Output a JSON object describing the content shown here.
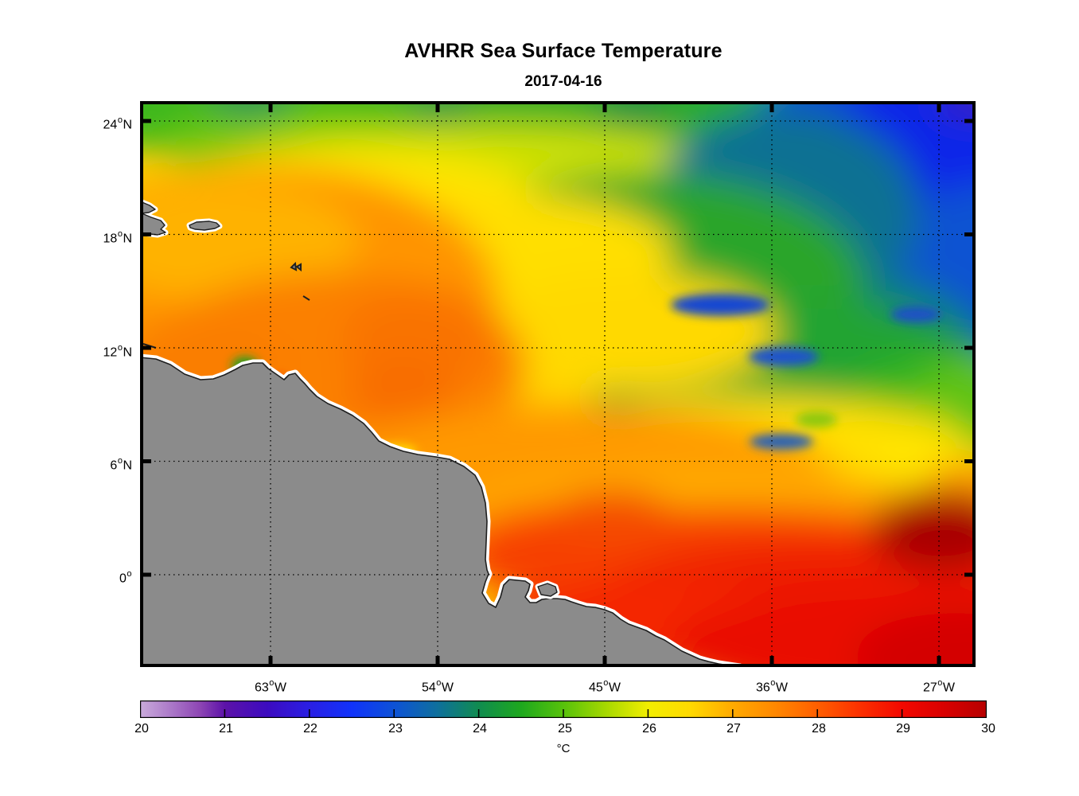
{
  "title": "AVHRR Sea Surface Temperature",
  "subtitle": "2017-04-16",
  "axes": {
    "x_ticks": [
      {
        "value": "63",
        "degree": "o",
        "suffix": "W"
      },
      {
        "value": "54",
        "degree": "o",
        "suffix": "W"
      },
      {
        "value": "45",
        "degree": "o",
        "suffix": "W"
      },
      {
        "value": "36",
        "degree": "o",
        "suffix": "W"
      },
      {
        "value": "27",
        "degree": "o",
        "suffix": "W"
      }
    ],
    "y_ticks": [
      {
        "value": "24",
        "degree": "o",
        "suffix": "N"
      },
      {
        "value": "18",
        "degree": "o",
        "suffix": "N"
      },
      {
        "value": "12",
        "degree": "o",
        "suffix": "N"
      },
      {
        "value": "6",
        "degree": "o",
        "suffix": "N"
      },
      {
        "value": "0",
        "degree": "o",
        "suffix": ""
      }
    ]
  },
  "colorbar": {
    "unit": "°C",
    "min": 20,
    "max": 30,
    "tick_labels": [
      "20",
      "21",
      "22",
      "23",
      "24",
      "25",
      "26",
      "27",
      "28",
      "29",
      "30"
    ],
    "stops": [
      {
        "t": 20.0,
        "color": "#c9aadb"
      },
      {
        "t": 20.4,
        "color": "#a873c6"
      },
      {
        "t": 20.7,
        "color": "#8e46b4"
      },
      {
        "t": 21.0,
        "color": "#5c12a8"
      },
      {
        "t": 21.5,
        "color": "#3c0bc0"
      },
      {
        "t": 22.0,
        "color": "#2a1fe4"
      },
      {
        "t": 22.5,
        "color": "#1133fa"
      },
      {
        "t": 23.0,
        "color": "#0d52d6"
      },
      {
        "t": 23.5,
        "color": "#0e6f9e"
      },
      {
        "t": 24.0,
        "color": "#108c50"
      },
      {
        "t": 24.5,
        "color": "#1ea81e"
      },
      {
        "t": 25.0,
        "color": "#57c20b"
      },
      {
        "t": 25.5,
        "color": "#a6d800"
      },
      {
        "t": 26.0,
        "color": "#f2ee00"
      },
      {
        "t": 26.5,
        "color": "#ffd900"
      },
      {
        "t": 27.0,
        "color": "#ffaa00"
      },
      {
        "t": 27.5,
        "color": "#ff8800"
      },
      {
        "t": 28.0,
        "color": "#ff5f00"
      },
      {
        "t": 28.5,
        "color": "#fb3100"
      },
      {
        "t": 29.0,
        "color": "#f30800"
      },
      {
        "t": 29.5,
        "color": "#d90000"
      },
      {
        "t": 30.0,
        "color": "#b70000"
      }
    ]
  },
  "map": {
    "land_color": "#8b8b8b",
    "coast_halo": "#ffffff",
    "coast_line": "#1f1f1f",
    "frame_color": "#000000"
  },
  "chart_data": {
    "type": "heatmap",
    "title": "AVHRR Sea Surface Temperature",
    "date": "2017-04-16",
    "variable": "Sea surface temperature",
    "sensor": "AVHRR",
    "units": "°C",
    "colorbar_range": [
      20,
      30
    ],
    "colorbar_ticks": [
      20,
      21,
      22,
      23,
      24,
      25,
      26,
      27,
      28,
      29,
      30
    ],
    "lon_ticks_deg_w": [
      63,
      54,
      45,
      36,
      27
    ],
    "lat_ticks_deg_n": [
      24,
      18,
      12,
      6,
      0
    ],
    "lon_extent_deg_w": [
      70,
      25
    ],
    "lat_extent_deg_n": [
      -4.9,
      25.1
    ],
    "grid": "dotted graticule, 9 deg lon x 6 deg lat, drawn over land and sea",
    "land": "South America (Venezuela/Guianas/Brazil) lower left, Hispaniola sliver and Puerto Rico upper left; gray fill with white no-data coastal buffer",
    "field_sample": {
      "note": "approximate SST in degC read from the color field; null = land / no data",
      "lats_deg_n": [
        24,
        20,
        16,
        12,
        8,
        4,
        0,
        -4
      ],
      "lons_deg_w": [
        69,
        63,
        57,
        51,
        45,
        39,
        33,
        27
      ],
      "values": [
        [
          24.5,
          24.3,
          24.5,
          24.0,
          23.8,
          23.0,
          22.3,
          22.0
        ],
        [
          26.0,
          25.8,
          25.3,
          24.8,
          24.2,
          23.3,
          22.5,
          22.3
        ],
        [
          27.5,
          27.3,
          26.5,
          25.5,
          24.8,
          24.2,
          23.0,
          22.8
        ],
        [
          27.8,
          27.7,
          27.2,
          26.3,
          25.2,
          24.5,
          24.0,
          25.0
        ],
        [
          null,
          27.8,
          27.5,
          26.8,
          26.3,
          26.0,
          26.3,
          26.5
        ],
        [
          null,
          null,
          28.0,
          28.2,
          27.5,
          27.3,
          27.2,
          27.5
        ],
        [
          null,
          null,
          null,
          28.8,
          28.8,
          28.5,
          28.3,
          28.5
        ],
        [
          null,
          null,
          null,
          null,
          29.3,
          29.5,
          29.3,
          29.2
        ]
      ]
    },
    "features": [
      {
        "name": "cold open-Atlantic pool",
        "approx_location": "NE corner, 27-36W / 14-25N",
        "sst_c": 22.0
      },
      {
        "name": "warm Caribbean water",
        "approx_location": "55-70W / 10-18N",
        "sst_c": 27.5
      },
      {
        "name": "equatorial warm band",
        "approx_location": "south of 3N along Brazil coast",
        "sst_c": 29.5
      },
      {
        "name": "dark red hot patch",
        "approx_location": "near 28W / 3N",
        "sst_c": 30.0
      },
      {
        "name": "cool filaments",
        "approx_location": "near 39W / 14N",
        "sst_c": 22.8
      }
    ]
  }
}
